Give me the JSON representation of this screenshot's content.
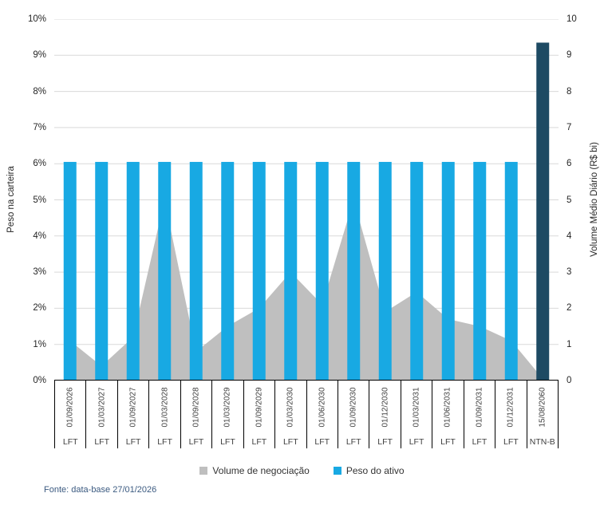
{
  "chart_data": {
    "type": "combo-area-bar",
    "categories": [
      {
        "date": "01/09/2026",
        "instrument": "LFT"
      },
      {
        "date": "01/03/2027",
        "instrument": "LFT"
      },
      {
        "date": "01/09/2027",
        "instrument": "LFT"
      },
      {
        "date": "01/03/2028",
        "instrument": "LFT"
      },
      {
        "date": "01/09/2028",
        "instrument": "LFT"
      },
      {
        "date": "01/03/2029",
        "instrument": "LFT"
      },
      {
        "date": "01/09/2029",
        "instrument": "LFT"
      },
      {
        "date": "01/03/2030",
        "instrument": "LFT"
      },
      {
        "date": "01/06/2030",
        "instrument": "LFT"
      },
      {
        "date": "01/09/2030",
        "instrument": "LFT"
      },
      {
        "date": "01/12/2030",
        "instrument": "LFT"
      },
      {
        "date": "01/03/2031",
        "instrument": "LFT"
      },
      {
        "date": "01/06/2031",
        "instrument": "LFT"
      },
      {
        "date": "01/09/2031",
        "instrument": "LFT"
      },
      {
        "date": "01/12/2031",
        "instrument": "LFT"
      },
      {
        "date": "15/08/2060",
        "instrument": "NTN-B"
      }
    ],
    "series": [
      {
        "name": "Volume de negociação",
        "type": "area",
        "axis": "left",
        "color": "#bfbfbf",
        "values": [
          1.1,
          0.4,
          1.2,
          5.0,
          0.8,
          1.5,
          2.0,
          3.0,
          2.1,
          5.0,
          1.9,
          2.45,
          1.7,
          1.5,
          1.1,
          0.05
        ]
      },
      {
        "name": "Peso do ativo",
        "type": "bar",
        "axis": "left",
        "color": "#18a9e3",
        "values": [
          6.05,
          6.05,
          6.05,
          6.05,
          6.05,
          6.05,
          6.05,
          6.05,
          6.05,
          6.05,
          6.05,
          6.05,
          6.05,
          6.05,
          6.05,
          null
        ]
      },
      {
        "name": "NTN-B",
        "type": "bar",
        "axis": "right",
        "color": "#1d4a63",
        "values": [
          null,
          null,
          null,
          null,
          null,
          null,
          null,
          null,
          null,
          null,
          null,
          null,
          null,
          null,
          null,
          9.35
        ]
      }
    ],
    "left_axis": {
      "label": "Peso na carteira",
      "min": 0,
      "max": 10,
      "ticks": [
        "0%",
        "1%",
        "2%",
        "3%",
        "4%",
        "5%",
        "6%",
        "7%",
        "8%",
        "9%",
        "10%"
      ]
    },
    "right_axis": {
      "label": "Volume Médio Diário (R$ bi)",
      "min": 0,
      "max": 10,
      "ticks": [
        "0",
        "1",
        "2",
        "3",
        "4",
        "5",
        "6",
        "7",
        "8",
        "9",
        "10"
      ]
    },
    "legend": [
      {
        "label": "Volume de negociação",
        "color": "#bfbfbf"
      },
      {
        "label": "Peso do ativo",
        "color": "#18a9e3"
      }
    ],
    "grid": true,
    "gridline_color": "#d9d9d9",
    "axis_line_color": "#000000"
  },
  "footer": {
    "text": "Fonte: data-base 27/01/2026",
    "color": "#3b5a80"
  }
}
